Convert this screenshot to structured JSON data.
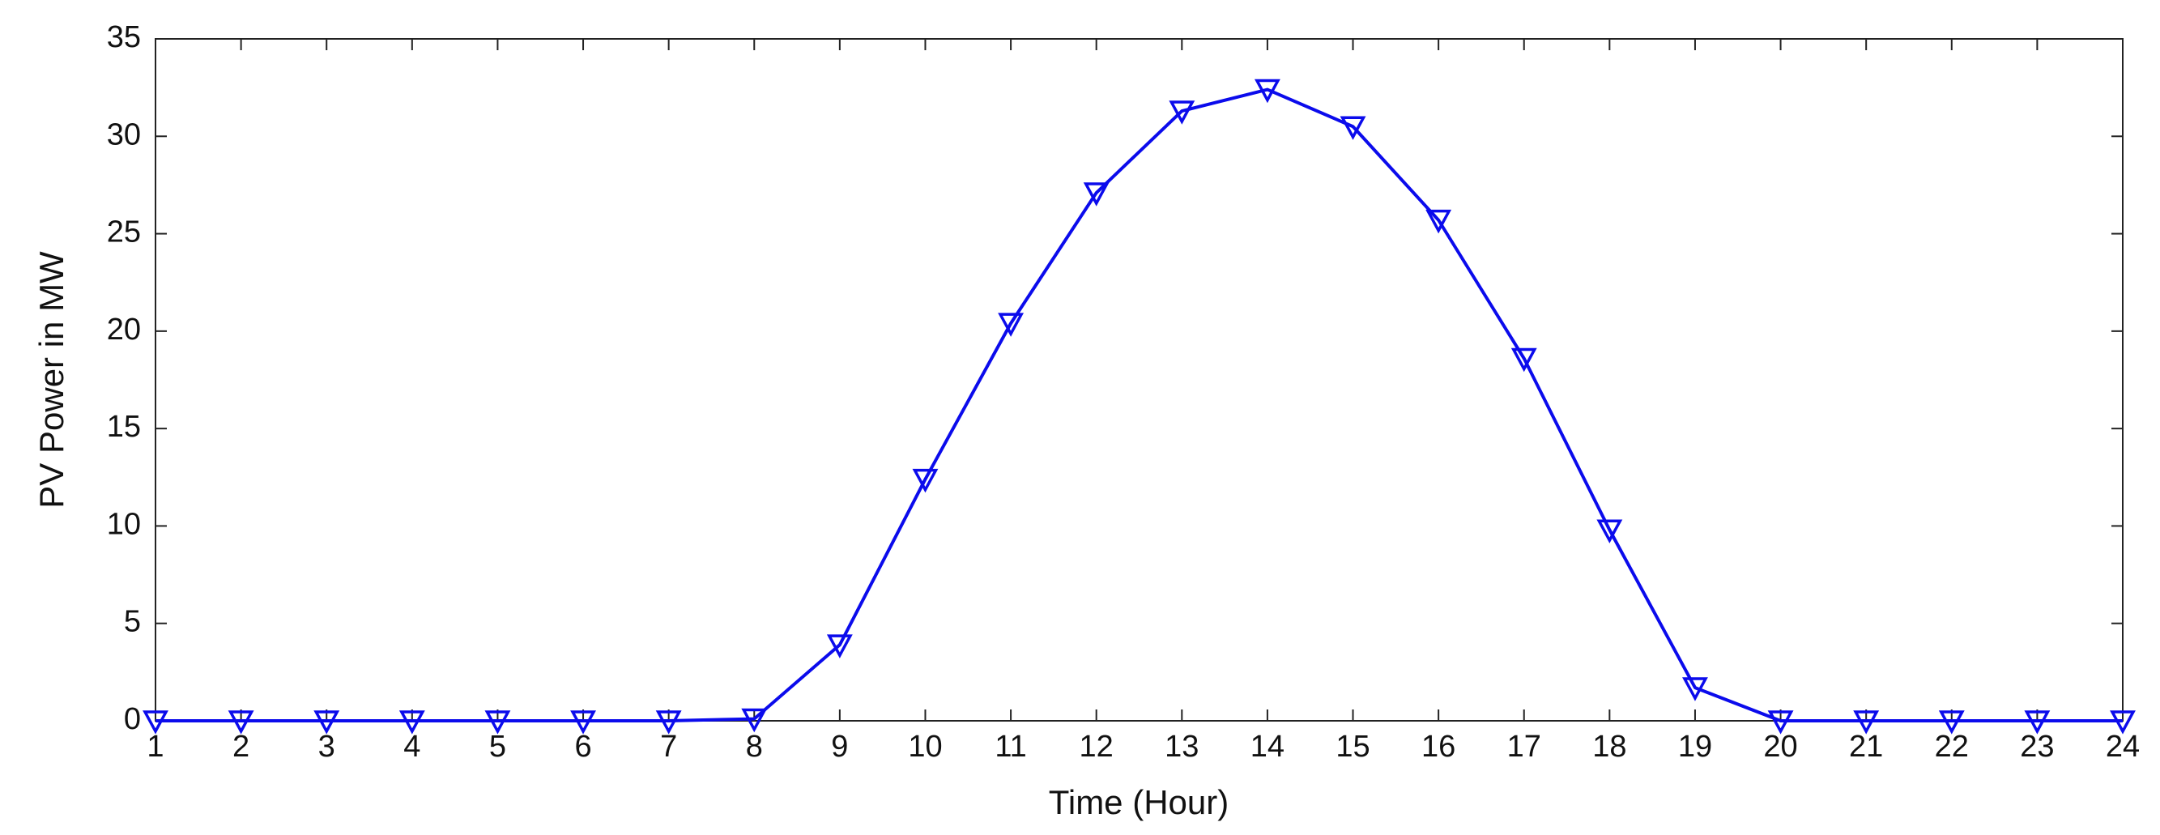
{
  "chart_data": {
    "type": "line",
    "x_label": "Time (Hour)",
    "y_label": "PV Power in MW",
    "x": [
      1,
      2,
      3,
      4,
      5,
      6,
      7,
      8,
      9,
      10,
      11,
      12,
      13,
      14,
      15,
      16,
      17,
      18,
      19,
      20,
      21,
      22,
      23,
      24
    ],
    "series": [
      {
        "color": "#0b0bec",
        "marker": "triangle-down",
        "values": [
          0,
          0,
          0,
          0,
          0,
          0,
          0,
          0.1,
          3.9,
          12.4,
          20.4,
          27.1,
          31.3,
          32.4,
          30.5,
          25.7,
          18.6,
          9.8,
          1.7,
          0,
          0,
          0,
          0,
          0
        ]
      }
    ],
    "xlim": [
      1,
      24
    ],
    "xticks": [
      1,
      2,
      3,
      4,
      5,
      6,
      7,
      8,
      9,
      10,
      11,
      12,
      13,
      14,
      15,
      16,
      17,
      18,
      19,
      20,
      21,
      22,
      23,
      24
    ],
    "ylim": [
      0,
      35
    ],
    "yticks": [
      0,
      5,
      10,
      15,
      20,
      25,
      30,
      35
    ],
    "grid": false
  }
}
